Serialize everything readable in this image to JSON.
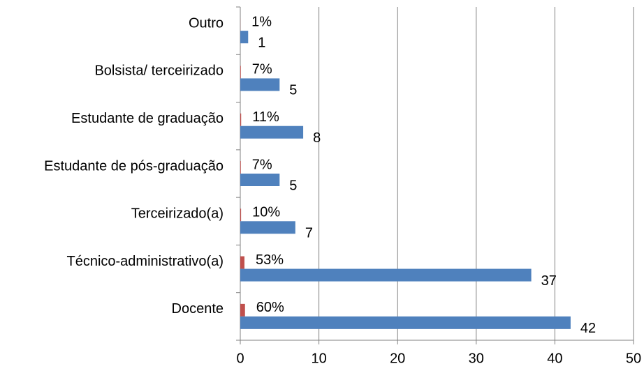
{
  "chart_data": {
    "type": "hbar",
    "categories": [
      "Docente",
      "Técnico-administrativo(a)",
      "Terceirizado(a)",
      "Estudante de pós-graduação",
      "Estudante de graduação",
      "Bolsista/ terceirizado",
      "Outro"
    ],
    "series": [
      {
        "color": "#c0504d",
        "values": [
          0.6,
          0.53,
          0.1,
          0.07,
          0.11,
          0.07,
          0.01
        ],
        "value_labels": [
          "60%",
          "53%",
          "10%",
          "7%",
          "11%",
          "7%",
          "1%"
        ]
      },
      {
        "color": "#4f81bd",
        "values": [
          42,
          37,
          7,
          5,
          8,
          5,
          1
        ]
      }
    ],
    "xlim": [
      0,
      50
    ],
    "xticks": [
      0,
      10,
      20,
      30,
      40,
      50
    ],
    "grid": true
  }
}
